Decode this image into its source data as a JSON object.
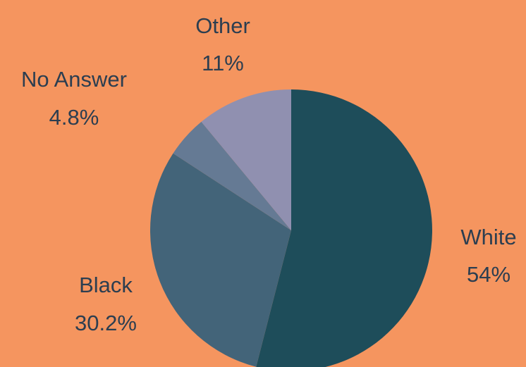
{
  "chart_data": {
    "type": "pie",
    "title": "",
    "background_color": "#f5955f",
    "start_angle_deg": 0,
    "direction": "clockwise",
    "slices": [
      {
        "label": "White",
        "value": 54,
        "display": "54%",
        "color": "#1e4d5a"
      },
      {
        "label": "Black",
        "value": 30.2,
        "display": "30.2%",
        "color": "#436479"
      },
      {
        "label": "No Answer",
        "value": 4.8,
        "display": "4.8%",
        "color": "#657a94"
      },
      {
        "label": "Other",
        "value": 11,
        "display": "11%",
        "color": "#9090b0"
      }
    ]
  }
}
